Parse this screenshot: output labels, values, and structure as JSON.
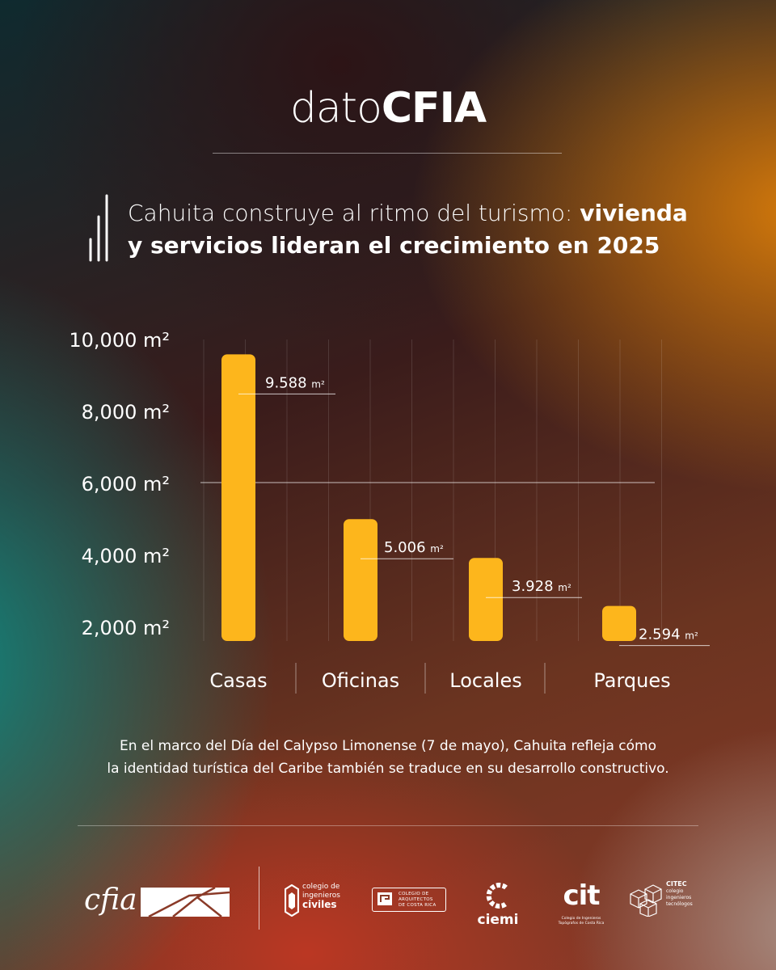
{
  "header": {
    "brand_light": "dato",
    "brand_bold": "CFIA"
  },
  "title": {
    "regular": "Cahuita construye al ritmo del turismo: ",
    "bold_1": "vivienda",
    "regular_2": "y servicios lideran el crecimiento en 2025"
  },
  "chart_data": {
    "type": "bar",
    "categories": [
      "Casas",
      "Oficinas",
      "Locales",
      "Parques"
    ],
    "values": [
      9588,
      5006,
      3928,
      2594
    ],
    "value_labels": [
      "9.588",
      "5.006",
      "3.928",
      "2.594"
    ],
    "value_unit": "m²",
    "y_ticks": [
      "10,000 m²",
      "8,000 m²",
      "6,000 m²",
      "4,000 m²",
      "2,000 m²"
    ],
    "ylim": [
      2000,
      10000
    ],
    "bar_color": "#FDB61C",
    "grid": true
  },
  "note": {
    "line1": "En el marco del Día del Calypso Limonense (7 de mayo), Cahuita refleja cómo",
    "line2": "la identidad turística del Caribe también se traduce en su desarrollo constructivo."
  },
  "footer": {
    "cfia": "cfia",
    "civiles": {
      "l1": "colegio de",
      "l2": "ingenieros",
      "l3": "civiles"
    },
    "arquitectos": {
      "l1": "COLEGIO DE",
      "l2": "ARQUITECTOS",
      "l3": "DE COSTA RICA"
    },
    "ciemi": "ciemi",
    "cit": {
      "name": "cit",
      "l1": "Colegio de Ingenieros",
      "l2": "Topógrafos de Costa Rica"
    },
    "citec": {
      "name": "CITEC",
      "l1": "colegio",
      "l2": "ingenieros",
      "l3": "tecnólogos"
    }
  }
}
